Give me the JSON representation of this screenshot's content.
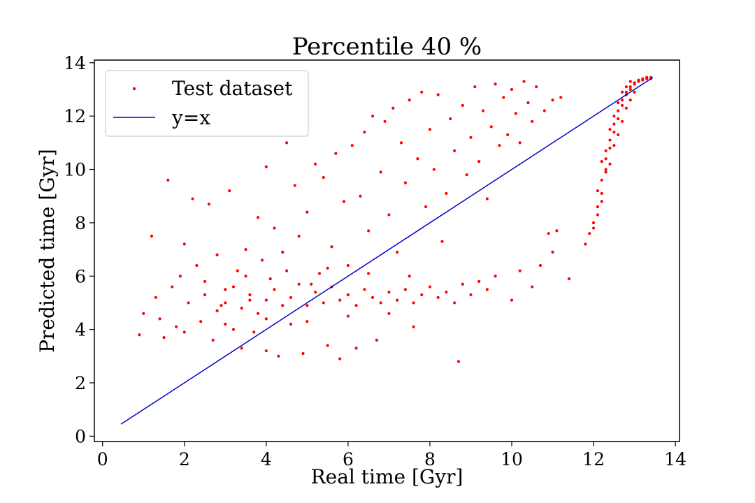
{
  "chart_data": {
    "type": "scatter",
    "title": "Percentile 40 %",
    "xlabel": "Real time [Gyr]",
    "ylabel": "Predicted time [Gyr]",
    "xlim": [
      -0.2,
      14.1
    ],
    "ylim": [
      -0.2,
      14.1
    ],
    "xticks": [
      "0",
      "2",
      "4",
      "6",
      "8",
      "10",
      "12",
      "14"
    ],
    "yticks": [
      "0",
      "2",
      "4",
      "6",
      "8",
      "10",
      "12",
      "14"
    ],
    "grid": false,
    "legend": {
      "position": "top-left",
      "entries": [
        {
          "label": "Test dataset",
          "marker": "dot",
          "color": "#ff0000"
        },
        {
          "label": "y=x",
          "marker": "line",
          "color": "#0000cc"
        }
      ]
    },
    "series": [
      {
        "name": "Test dataset",
        "kind": "scatter",
        "color": "#ff0000",
        "points": [
          [
            0.9,
            3.8
          ],
          [
            1.0,
            4.6
          ],
          [
            1.2,
            7.5
          ],
          [
            1.3,
            5.2
          ],
          [
            1.4,
            4.4
          ],
          [
            1.5,
            3.7
          ],
          [
            1.6,
            9.6
          ],
          [
            1.7,
            5.6
          ],
          [
            1.8,
            4.1
          ],
          [
            1.9,
            6.0
          ],
          [
            2.0,
            7.2
          ],
          [
            2.0,
            3.9
          ],
          [
            2.1,
            5.0
          ],
          [
            2.2,
            8.9
          ],
          [
            2.3,
            6.4
          ],
          [
            2.4,
            4.3
          ],
          [
            2.5,
            5.8
          ],
          [
            2.6,
            8.7
          ],
          [
            2.7,
            3.6
          ],
          [
            2.8,
            6.8
          ],
          [
            2.9,
            4.9
          ],
          [
            3.0,
            5.5
          ],
          [
            3.1,
            9.2
          ],
          [
            3.2,
            4.0
          ],
          [
            3.3,
            6.2
          ],
          [
            3.4,
            3.3
          ],
          [
            3.5,
            7.0
          ],
          [
            3.6,
            5.1
          ],
          [
            3.7,
            3.9
          ],
          [
            3.8,
            8.2
          ],
          [
            3.9,
            6.6
          ],
          [
            4.0,
            10.1
          ],
          [
            4.0,
            3.2
          ],
          [
            4.1,
            5.9
          ],
          [
            4.2,
            7.8
          ],
          [
            4.3,
            3.0
          ],
          [
            4.4,
            6.9
          ],
          [
            4.5,
            11.0
          ],
          [
            4.6,
            4.2
          ],
          [
            4.7,
            9.4
          ],
          [
            4.8,
            7.5
          ],
          [
            4.9,
            3.1
          ],
          [
            5.0,
            8.4
          ],
          [
            5.1,
            5.7
          ],
          [
            5.2,
            10.2
          ],
          [
            5.3,
            6.1
          ],
          [
            5.4,
            9.7
          ],
          [
            5.5,
            3.4
          ],
          [
            5.6,
            7.1
          ],
          [
            5.7,
            10.6
          ],
          [
            5.8,
            2.9
          ],
          [
            5.9,
            8.8
          ],
          [
            6.0,
            6.4
          ],
          [
            6.1,
            10.9
          ],
          [
            6.2,
            3.3
          ],
          [
            6.3,
            9.0
          ],
          [
            6.4,
            11.4
          ],
          [
            6.5,
            7.7
          ],
          [
            6.6,
            12.0
          ],
          [
            6.7,
            3.6
          ],
          [
            6.8,
            9.9
          ],
          [
            6.9,
            11.8
          ],
          [
            7.0,
            8.3
          ],
          [
            7.1,
            12.3
          ],
          [
            7.2,
            6.9
          ],
          [
            7.3,
            11.0
          ],
          [
            7.4,
            9.5
          ],
          [
            7.5,
            12.6
          ],
          [
            7.6,
            4.1
          ],
          [
            7.7,
            10.4
          ],
          [
            7.8,
            12.9
          ],
          [
            7.9,
            8.6
          ],
          [
            8.0,
            11.5
          ],
          [
            8.1,
            10.0
          ],
          [
            8.2,
            12.8
          ],
          [
            8.3,
            7.3
          ],
          [
            8.4,
            9.1
          ],
          [
            8.5,
            11.9
          ],
          [
            8.6,
            10.7
          ],
          [
            8.7,
            2.8
          ],
          [
            8.8,
            12.4
          ],
          [
            8.9,
            9.8
          ],
          [
            9.0,
            11.2
          ],
          [
            9.1,
            13.1
          ],
          [
            9.2,
            10.3
          ],
          [
            9.3,
            12.2
          ],
          [
            9.4,
            8.9
          ],
          [
            9.5,
            11.6
          ],
          [
            9.6,
            13.2
          ],
          [
            9.7,
            10.9
          ],
          [
            9.8,
            12.7
          ],
          [
            9.9,
            11.3
          ],
          [
            10.0,
            13.0
          ],
          [
            10.1,
            12.1
          ],
          [
            10.2,
            11.0
          ],
          [
            10.3,
            13.3
          ],
          [
            10.4,
            12.5
          ],
          [
            10.5,
            11.8
          ],
          [
            10.6,
            13.1
          ],
          [
            10.8,
            12.2
          ],
          [
            11.0,
            12.6
          ],
          [
            11.2,
            12.7
          ],
          [
            10.0,
            5.1
          ],
          [
            10.2,
            6.2
          ],
          [
            10.5,
            5.6
          ],
          [
            10.7,
            6.4
          ],
          [
            10.9,
            7.6
          ],
          [
            11.0,
            6.9
          ],
          [
            11.1,
            7.7
          ],
          [
            11.4,
            5.9
          ],
          [
            2.5,
            5.3
          ],
          [
            2.8,
            4.7
          ],
          [
            3.0,
            5.0
          ],
          [
            3.2,
            5.6
          ],
          [
            3.4,
            4.8
          ],
          [
            3.6,
            5.3
          ],
          [
            3.8,
            4.6
          ],
          [
            4.0,
            5.1
          ],
          [
            4.2,
            5.5
          ],
          [
            4.4,
            4.9
          ],
          [
            4.6,
            5.2
          ],
          [
            4.8,
            5.7
          ],
          [
            5.0,
            4.9
          ],
          [
            5.2,
            5.4
          ],
          [
            5.4,
            5.0
          ],
          [
            5.6,
            5.6
          ],
          [
            5.8,
            5.1
          ],
          [
            6.0,
            5.3
          ],
          [
            6.2,
            4.9
          ],
          [
            6.4,
            5.5
          ],
          [
            6.6,
            5.2
          ],
          [
            6.8,
            5.0
          ],
          [
            7.0,
            5.4
          ],
          [
            7.2,
            5.1
          ],
          [
            7.4,
            5.5
          ],
          [
            7.6,
            5.0
          ],
          [
            7.8,
            5.3
          ],
          [
            8.0,
            5.6
          ],
          [
            8.2,
            5.2
          ],
          [
            8.4,
            5.4
          ],
          [
            8.6,
            5.0
          ],
          [
            8.8,
            5.7
          ],
          [
            9.0,
            5.3
          ],
          [
            9.2,
            5.8
          ],
          [
            9.4,
            5.5
          ],
          [
            9.6,
            6.0
          ],
          [
            3.0,
            4.2
          ],
          [
            3.5,
            6.0
          ],
          [
            4.0,
            4.4
          ],
          [
            4.5,
            6.2
          ],
          [
            5.0,
            4.3
          ],
          [
            5.5,
            6.3
          ],
          [
            6.0,
            4.5
          ],
          [
            6.5,
            6.1
          ],
          [
            7.0,
            4.6
          ],
          [
            7.5,
            6.0
          ],
          [
            11.8,
            7.2
          ],
          [
            11.9,
            7.6
          ],
          [
            12.0,
            8.0
          ],
          [
            12.1,
            8.6
          ],
          [
            12.2,
            9.1
          ],
          [
            12.2,
            9.6
          ],
          [
            12.3,
            10.0
          ],
          [
            12.3,
            10.4
          ],
          [
            12.4,
            10.8
          ],
          [
            12.4,
            11.1
          ],
          [
            12.5,
            11.4
          ],
          [
            12.5,
            11.7
          ],
          [
            12.6,
            11.9
          ],
          [
            12.6,
            12.2
          ],
          [
            12.7,
            12.4
          ],
          [
            12.7,
            12.6
          ],
          [
            12.8,
            12.8
          ],
          [
            12.8,
            12.9
          ],
          [
            12.9,
            13.0
          ],
          [
            12.9,
            13.1
          ],
          [
            13.0,
            13.2
          ],
          [
            13.0,
            13.25
          ],
          [
            13.1,
            13.3
          ],
          [
            13.1,
            13.35
          ],
          [
            13.2,
            13.35
          ],
          [
            13.2,
            13.4
          ],
          [
            13.3,
            13.4
          ],
          [
            13.3,
            13.45
          ],
          [
            13.4,
            13.45
          ],
          [
            13.4,
            13.4
          ],
          [
            12.1,
            9.2
          ],
          [
            12.2,
            8.8
          ],
          [
            12.3,
            9.9
          ],
          [
            12.4,
            10.2
          ],
          [
            12.5,
            10.9
          ],
          [
            12.6,
            11.3
          ],
          [
            12.7,
            11.8
          ],
          [
            12.8,
            12.3
          ],
          [
            12.9,
            12.6
          ],
          [
            13.0,
            12.9
          ],
          [
            12.0,
            7.8
          ],
          [
            12.1,
            8.3
          ],
          [
            12.2,
            10.3
          ],
          [
            12.3,
            10.7
          ],
          [
            12.4,
            11.5
          ],
          [
            12.5,
            12.0
          ],
          [
            12.6,
            12.5
          ],
          [
            12.7,
            12.9
          ],
          [
            12.8,
            13.1
          ],
          [
            12.9,
            13.3
          ]
        ]
      },
      {
        "name": "y=x",
        "kind": "line",
        "color": "#0000cc",
        "points": [
          [
            0.45,
            0.45
          ],
          [
            13.45,
            13.45
          ]
        ]
      }
    ]
  }
}
